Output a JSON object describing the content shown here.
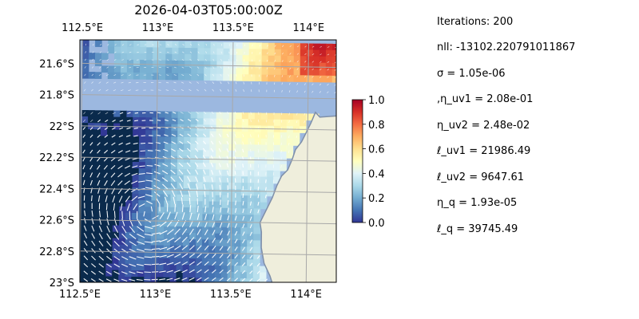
{
  "chart_data": {
    "type": "heatmap",
    "title": "2026-04-03T05:00:00Z",
    "xlabel": "",
    "ylabel": "",
    "lon_range": [
      112.5,
      114.2
    ],
    "lat_range": [
      -23.0,
      -21.45
    ],
    "lon_ticks": [
      112.5,
      113.0,
      113.5,
      114.0
    ],
    "lon_tick_labels": [
      "112.5°E",
      "113°E",
      "113.5°E",
      "114°E"
    ],
    "lat_ticks": [
      -21.6,
      -21.8,
      -22.0,
      -22.2,
      -22.4,
      -22.6,
      -22.8,
      -23.0
    ],
    "lat_tick_labels": [
      "21.6°S",
      "21.8°S",
      "22°S",
      "22.2°S",
      "22.4°S",
      "22.6°S",
      "22.8°S",
      "23°S"
    ],
    "grid": true,
    "colormap": "RdYlBu_r",
    "colorbar": {
      "range": [
        0.0,
        1.0
      ],
      "ticks": [
        0.0,
        0.2,
        0.4,
        0.6,
        0.8,
        1.0
      ],
      "tick_labels": [
        "0.0",
        "0.2",
        "0.4",
        "0.6",
        "0.8",
        "1.0"
      ]
    },
    "field_description_colors": {
      "ocean_background": "#9cb8e0",
      "land": "#efeedc",
      "coastline": "#7f8fa8",
      "vectors": "#ffffff",
      "grid": "#b0b0b0"
    },
    "coastline_points": [
      [
        114.08,
        -21.92
      ],
      [
        114.05,
        -21.89
      ],
      [
        114.02,
        -21.96
      ],
      [
        113.99,
        -22.02
      ],
      [
        113.96,
        -22.08
      ],
      [
        113.92,
        -22.13
      ],
      [
        113.9,
        -22.19
      ],
      [
        113.87,
        -22.26
      ],
      [
        113.83,
        -22.3
      ],
      [
        113.8,
        -22.36
      ],
      [
        113.77,
        -22.44
      ],
      [
        113.73,
        -22.52
      ],
      [
        113.69,
        -22.6
      ],
      [
        113.7,
        -22.66
      ],
      [
        113.7,
        -22.76
      ],
      [
        113.72,
        -22.86
      ],
      [
        113.76,
        -22.94
      ],
      [
        113.78,
        -23.0
      ]
    ]
  },
  "annotations": [
    "Iterations: 200",
    "nll: -13102.220791011867",
    "σ = 1.05e-06",
    ",η_uv1 = 2.08e-01",
    "η_uv2 = 2.48e-02",
    "ℓ_uv1 = 21986.49",
    "ℓ_uv2 = 9647.61",
    "η_q = 1.93e-05",
    "ℓ_q = 39745.49"
  ]
}
